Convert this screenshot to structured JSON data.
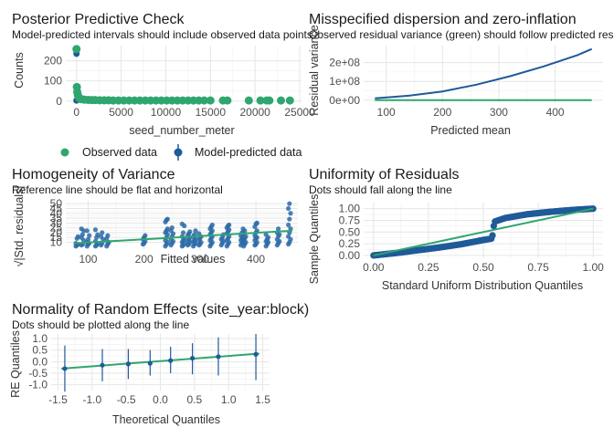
{
  "colors": {
    "green": "#2fa66e",
    "blue": "#1f5a99",
    "point_blue": "#2a6aa8"
  },
  "legend": {
    "observed": "Observed data",
    "predicted": "Model-predicted data"
  },
  "chart_data": [
    {
      "id": "ppc",
      "type": "scatter",
      "title": "Posterior Predictive Check",
      "subtitle": "Model-predicted intervals should include observed data points",
      "xlabel": "seed_number_meter",
      "ylabel": "Counts",
      "xlim": [
        -1200,
        25200
      ],
      "ylim": [
        -10,
        275
      ],
      "xticks": [
        0,
        5000,
        10000,
        15000,
        20000,
        25000
      ],
      "xtick_labels": [
        "0",
        "5000",
        "10000",
        "15000",
        "20000",
        "25000"
      ],
      "yticks": [
        0,
        100,
        200
      ],
      "ytick_labels": [
        "0",
        "100",
        "200"
      ],
      "series": [
        {
          "name": "Observed data",
          "points": [
            [
              0,
              258
            ],
            [
              40,
              70
            ],
            [
              80,
              45
            ],
            [
              150,
              30
            ],
            [
              250,
              18
            ],
            [
              400,
              12
            ],
            [
              600,
              9
            ],
            [
              900,
              7
            ],
            [
              1300,
              6
            ],
            [
              1700,
              5
            ],
            [
              2100,
              5
            ],
            [
              2600,
              4
            ],
            [
              3100,
              4
            ],
            [
              3600,
              4
            ],
            [
              4100,
              3
            ],
            [
              4700,
              3
            ],
            [
              5300,
              3
            ],
            [
              5900,
              3
            ],
            [
              6500,
              3
            ],
            [
              7100,
              3
            ],
            [
              7700,
              3
            ],
            [
              8300,
              3
            ],
            [
              8900,
              3
            ],
            [
              9500,
              3
            ],
            [
              10100,
              3
            ],
            [
              10700,
              3
            ],
            [
              11300,
              3
            ],
            [
              11900,
              3
            ],
            [
              12500,
              3
            ],
            [
              13100,
              3
            ],
            [
              13700,
              3
            ],
            [
              14300,
              3
            ],
            [
              15000,
              3
            ],
            [
              16400,
              3
            ],
            [
              16900,
              3
            ],
            [
              19300,
              3
            ],
            [
              20600,
              3
            ],
            [
              21300,
              3
            ],
            [
              21600,
              3
            ],
            [
              22900,
              3
            ],
            [
              23900,
              3
            ]
          ]
        },
        {
          "name": "Model-predicted data",
          "intervals": [
            [
              0,
              227,
              243
            ],
            [
              0,
              0,
              6
            ],
            [
              60,
              0,
              8
            ]
          ]
        }
      ]
    },
    {
      "id": "dispersion",
      "type": "line",
      "title": "Misspecified dispersion and zero-inflation",
      "subtitle": "Observed residual variance (green) should follow predicted residual variance (blue)",
      "xlabel": "Predicted mean",
      "ylabel": "Residual variance",
      "xlim": [
        60,
        485
      ],
      "ylim": [
        -15000000.0,
        290000000.0
      ],
      "xticks": [
        100,
        200,
        300,
        400
      ],
      "xtick_labels": [
        "100",
        "200",
        "300",
        "400"
      ],
      "yticks": [
        0,
        100000000,
        200000000
      ],
      "ytick_labels": [
        "0e+00",
        "1e+08",
        "2e+08"
      ],
      "series": [
        {
          "name": "observed",
          "x": [
            80,
            465
          ],
          "y": [
            1000000,
            1000000
          ]
        },
        {
          "name": "predicted",
          "x": [
            80,
            140,
            200,
            260,
            320,
            380,
            440,
            465
          ],
          "y": [
            10000000,
            24000000,
            47000000,
            83000000,
            128000000,
            180000000,
            240000000,
            272000000
          ]
        }
      ]
    },
    {
      "id": "homogeneity",
      "type": "scatter",
      "title": "Homogeneity of Variance",
      "subtitle": "Reference line should be flat and horizontal",
      "xlabel": "Fitted values",
      "ylabel": "√|Std. residuals|",
      "xlim": [
        60,
        475
      ],
      "ylim": [
        2,
        53
      ],
      "xticks": [
        100,
        200,
        300,
        400
      ],
      "xtick_labels": [
        "100",
        "200",
        "300",
        "400"
      ],
      "yticks": [
        10,
        15,
        20,
        25,
        30,
        35,
        40,
        45,
        50
      ],
      "ytick_labels": [
        "10",
        "15",
        "20",
        "25",
        "30",
        "35",
        "40",
        "45",
        "50"
      ],
      "points_by_x": [
        [
          80,
          [
            6,
            7,
            8,
            9,
            14,
            16
          ]
        ],
        [
          90,
          [
            7,
            8,
            12,
            15,
            18,
            22,
            24
          ]
        ],
        [
          100,
          [
            6,
            8,
            9,
            10,
            13,
            17,
            22
          ]
        ],
        [
          115,
          [
            6,
            7,
            9,
            11,
            15,
            18,
            23
          ]
        ],
        [
          125,
          [
            7,
            9,
            13,
            16,
            20
          ]
        ],
        [
          135,
          [
            6,
            8,
            10,
            14,
            17
          ]
        ],
        [
          200,
          [
            8,
            9,
            11,
            13,
            15,
            17
          ]
        ],
        [
          240,
          [
            6,
            8,
            10,
            12,
            15,
            18,
            20,
            22,
            24,
            31,
            33,
            34
          ]
        ],
        [
          250,
          [
            7,
            9,
            11,
            13,
            16,
            19,
            22,
            25
          ]
        ],
        [
          270,
          [
            6,
            7,
            9,
            10,
            12,
            14,
            16,
            20,
            27,
            29
          ]
        ],
        [
          280,
          [
            7,
            8,
            10,
            11,
            13,
            15,
            17,
            19,
            21
          ]
        ],
        [
          290,
          [
            6,
            8,
            9,
            11,
            12,
            14,
            16,
            18,
            22
          ]
        ],
        [
          300,
          [
            7,
            8,
            10,
            12,
            14,
            16,
            19
          ]
        ],
        [
          320,
          [
            6,
            8,
            10,
            12,
            14,
            16,
            18,
            20,
            22,
            24,
            26,
            28
          ]
        ],
        [
          340,
          [
            7,
            9,
            11,
            13,
            15,
            18
          ]
        ],
        [
          350,
          [
            6,
            8,
            10,
            12,
            14,
            16,
            19,
            21,
            23,
            25,
            27,
            28
          ]
        ],
        [
          375,
          [
            7,
            9,
            11,
            12,
            14,
            16,
            17,
            20,
            24
          ]
        ],
        [
          380,
          [
            6,
            8,
            10,
            12,
            14,
            16,
            19,
            22
          ]
        ],
        [
          400,
          [
            7,
            8,
            10,
            12,
            14,
            15,
            17,
            20,
            22,
            26,
            29,
            30
          ]
        ],
        [
          420,
          [
            6,
            8,
            10,
            11,
            13,
            15,
            18
          ]
        ],
        [
          440,
          [
            7,
            9,
            11,
            13,
            16,
            18,
            20,
            24
          ]
        ],
        [
          460,
          [
            8,
            10,
            13,
            16,
            20,
            24,
            28,
            34,
            40,
            45,
            50
          ]
        ]
      ],
      "reference_line": {
        "x": [
          75,
          465
        ],
        "y": [
          9,
          22
        ]
      }
    },
    {
      "id": "uniformity",
      "type": "scatter",
      "title": "Uniformity of Residuals",
      "subtitle": "Dots should fall along the line",
      "xlabel": "Standard Uniform Distribution Quantiles",
      "ylabel": "Sample Quantiles",
      "xlim": [
        -0.045,
        1.045
      ],
      "ylim": [
        -0.06,
        1.13
      ],
      "xticks": [
        0,
        0.25,
        0.5,
        0.75,
        1
      ],
      "xtick_labels": [
        "0.00",
        "0.25",
        "0.50",
        "0.75",
        "1.00"
      ],
      "yticks": [
        0,
        0.25,
        0.5,
        0.75,
        1
      ],
      "ytick_labels": [
        "0.00",
        "0.25",
        "0.50",
        "0.75",
        "1.00"
      ],
      "curve": {
        "x": [
          0,
          0.1,
          0.2,
          0.3,
          0.4,
          0.5,
          0.54,
          0.55,
          0.6,
          0.7,
          0.8,
          0.9,
          1
        ],
        "y": [
          0,
          0.05,
          0.11,
          0.17,
          0.24,
          0.33,
          0.36,
          0.72,
          0.8,
          0.88,
          0.93,
          0.97,
          1
        ]
      },
      "reference_line": {
        "x": [
          0,
          1
        ],
        "y": [
          0,
          1
        ]
      }
    },
    {
      "id": "re_normality",
      "type": "scatter",
      "title": "Normality of Random Effects (site_year:block)",
      "subtitle": "Dots should be plotted along the line",
      "xlabel": "Theoretical Quantiles",
      "ylabel": "RE Quantiles",
      "xlim": [
        -1.6,
        1.6
      ],
      "ylim": [
        -1.25,
        1.2
      ],
      "xticks": [
        -1.5,
        -1,
        -0.5,
        0,
        0.5,
        1,
        1.5
      ],
      "xtick_labels": [
        "-1.5",
        "-1.0",
        "-0.5",
        "0.0",
        "0.5",
        "1.0",
        "1.5"
      ],
      "yticks": [
        -1,
        -0.5,
        0,
        0.5,
        1
      ],
      "ytick_labels": [
        "-1.0",
        "-0.5",
        "0.0",
        "0.5",
        "1.0"
      ],
      "points": [
        {
          "x": -1.4,
          "y": -0.3,
          "lo": -1.3,
          "hi": 0.7
        },
        {
          "x": -0.85,
          "y": -0.15,
          "lo": -0.85,
          "hi": 0.55
        },
        {
          "x": -0.47,
          "y": -0.1,
          "lo": -0.75,
          "hi": 0.55
        },
        {
          "x": -0.15,
          "y": -0.07,
          "lo": -0.6,
          "hi": 0.5
        },
        {
          "x": 0.15,
          "y": 0.05,
          "lo": -0.5,
          "hi": 0.65
        },
        {
          "x": 0.47,
          "y": 0.15,
          "lo": -0.55,
          "hi": 0.8
        },
        {
          "x": 0.85,
          "y": 0.22,
          "lo": -0.6,
          "hi": 1.05
        },
        {
          "x": 1.4,
          "y": 0.32,
          "lo": -0.8,
          "hi": 1.2
        }
      ],
      "reference_line": {
        "x": [
          -1.45,
          1.45
        ],
        "y": [
          -0.3,
          0.35
        ]
      }
    }
  ]
}
